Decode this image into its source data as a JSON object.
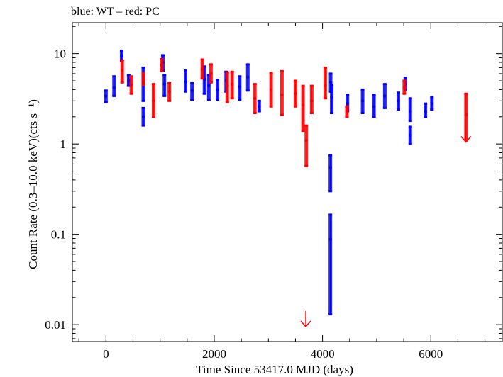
{
  "chart_data": {
    "type": "scatter",
    "title": "blue: WT – red: PC",
    "xlabel": "Time Since 53417.0 MJD (days)",
    "ylabel": "Count Rate (0.3–10.0 keV)(cts s⁻¹)",
    "xlim": [
      -620,
      7320
    ],
    "ylim": [
      0.0065,
      22
    ],
    "yscale": "log",
    "xticks": [
      0,
      2000,
      4000,
      6000
    ],
    "xtick_labels": [
      "0",
      "2000",
      "4000",
      "6000"
    ],
    "yticks": [
      0.01,
      0.1,
      1,
      10
    ],
    "ytick_labels": [
      "0.01",
      "0.1",
      "1",
      "10"
    ],
    "grid": false,
    "legend": "none",
    "series": [
      {
        "name": "WT",
        "color": "#0000ff",
        "points": [
          {
            "x": 0,
            "y": 3.4,
            "lo": 2.9,
            "hi": 3.9
          },
          {
            "x": 150,
            "y": 4.2,
            "lo": 3.4,
            "hi": 5.6
          },
          {
            "x": 290,
            "y": 9.5,
            "lo": 8.3,
            "hi": 10.8
          },
          {
            "x": 420,
            "y": 5.0,
            "lo": 4.4,
            "hi": 5.8
          },
          {
            "x": 690,
            "y": 4.7,
            "lo": 3.0,
            "hi": 7.0
          },
          {
            "x": 690,
            "y": 2.0,
            "lo": 1.6,
            "hi": 2.5
          },
          {
            "x": 1050,
            "y": 8.0,
            "lo": 6.5,
            "hi": 9.6
          },
          {
            "x": 1080,
            "y": 4.6,
            "lo": 3.4,
            "hi": 5.8
          },
          {
            "x": 1470,
            "y": 4.9,
            "lo": 3.8,
            "hi": 6.5
          },
          {
            "x": 1590,
            "y": 3.9,
            "lo": 3.1,
            "hi": 4.7
          },
          {
            "x": 1820,
            "y": 5.2,
            "lo": 3.6,
            "hi": 7.2
          },
          {
            "x": 1900,
            "y": 4.4,
            "lo": 3.1,
            "hi": 5.8
          },
          {
            "x": 2060,
            "y": 4.0,
            "lo": 3.1,
            "hi": 5.1
          },
          {
            "x": 2220,
            "y": 5.0,
            "lo": 3.8,
            "hi": 6.3
          },
          {
            "x": 2470,
            "y": 4.3,
            "lo": 3.1,
            "hi": 5.6
          },
          {
            "x": 2620,
            "y": 5.5,
            "lo": 3.9,
            "hi": 7.6
          },
          {
            "x": 2830,
            "y": 2.6,
            "lo": 2.3,
            "hi": 3.0
          },
          {
            "x": 4150,
            "y": 4.8,
            "lo": 3.8,
            "hi": 6.0
          },
          {
            "x": 4170,
            "y": 3.3,
            "lo": 2.2,
            "hi": 4.5
          },
          {
            "x": 4145,
            "y": 0.55,
            "lo": 0.3,
            "hi": 0.75
          },
          {
            "x": 4145,
            "y": 0.088,
            "lo": 0.013,
            "hi": 0.165
          },
          {
            "x": 4460,
            "y": 2.8,
            "lo": 2.3,
            "hi": 3.5
          },
          {
            "x": 4740,
            "y": 3.0,
            "lo": 2.2,
            "hi": 4.0
          },
          {
            "x": 4950,
            "y": 2.6,
            "lo": 2.0,
            "hi": 3.5
          },
          {
            "x": 5150,
            "y": 3.4,
            "lo": 2.5,
            "hi": 4.6
          },
          {
            "x": 5400,
            "y": 3.0,
            "lo": 2.4,
            "hi": 3.7
          },
          {
            "x": 5530,
            "y": 4.6,
            "lo": 4.0,
            "hi": 5.4
          },
          {
            "x": 5620,
            "y": 2.3,
            "lo": 1.8,
            "hi": 3.2
          },
          {
            "x": 5620,
            "y": 1.25,
            "lo": 1.0,
            "hi": 1.55
          },
          {
            "x": 5900,
            "y": 2.3,
            "lo": 2.0,
            "hi": 2.8
          },
          {
            "x": 6020,
            "y": 2.8,
            "lo": 2.4,
            "hi": 3.3
          }
        ]
      },
      {
        "name": "PC",
        "color": "#ff0000",
        "points": [
          {
            "x": 300,
            "y": 6.5,
            "lo": 4.8,
            "hi": 8.4
          },
          {
            "x": 470,
            "y": 4.5,
            "lo": 3.6,
            "hi": 5.6
          },
          {
            "x": 690,
            "y": 5.2,
            "lo": 4.5,
            "hi": 6.1
          },
          {
            "x": 880,
            "y": 3.0,
            "lo": 2.0,
            "hi": 4.6
          },
          {
            "x": 1030,
            "y": 7.5,
            "lo": 6.4,
            "hi": 8.7
          },
          {
            "x": 1170,
            "y": 3.8,
            "lo": 3.0,
            "hi": 4.7
          },
          {
            "x": 1780,
            "y": 6.7,
            "lo": 5.3,
            "hi": 8.6
          },
          {
            "x": 1940,
            "y": 6.0,
            "lo": 4.8,
            "hi": 7.6
          },
          {
            "x": 2240,
            "y": 4.4,
            "lo": 2.9,
            "hi": 6.2
          },
          {
            "x": 2330,
            "y": 4.6,
            "lo": 3.2,
            "hi": 6.3
          },
          {
            "x": 2750,
            "y": 3.2,
            "lo": 2.2,
            "hi": 4.6
          },
          {
            "x": 3050,
            "y": 4.0,
            "lo": 2.6,
            "hi": 6.1
          },
          {
            "x": 3250,
            "y": 3.5,
            "lo": 2.1,
            "hi": 6.4
          },
          {
            "x": 3500,
            "y": 3.6,
            "lo": 2.6,
            "hi": 5.0
          },
          {
            "x": 3640,
            "y": 2.7,
            "lo": 1.4,
            "hi": 4.4
          },
          {
            "x": 3700,
            "y": 1.1,
            "lo": 0.57,
            "hi": 1.6
          },
          {
            "x": 3800,
            "y": 3.0,
            "lo": 2.2,
            "hi": 4.4
          },
          {
            "x": 4050,
            "y": 4.4,
            "lo": 3.2,
            "hi": 7.0
          },
          {
            "x": 4450,
            "y": 2.3,
            "lo": 2.0,
            "hi": 2.6
          },
          {
            "x": 5510,
            "y": 4.2,
            "lo": 3.6,
            "hi": 5.0
          },
          {
            "x": 6650,
            "y": 2.1,
            "lo": 1.1,
            "hi": 3.6
          }
        ],
        "upper_limits": [
          {
            "x": 3690,
            "y": 0.0095
          },
          {
            "x": 6650,
            "y": 1.05
          }
        ]
      }
    ]
  }
}
